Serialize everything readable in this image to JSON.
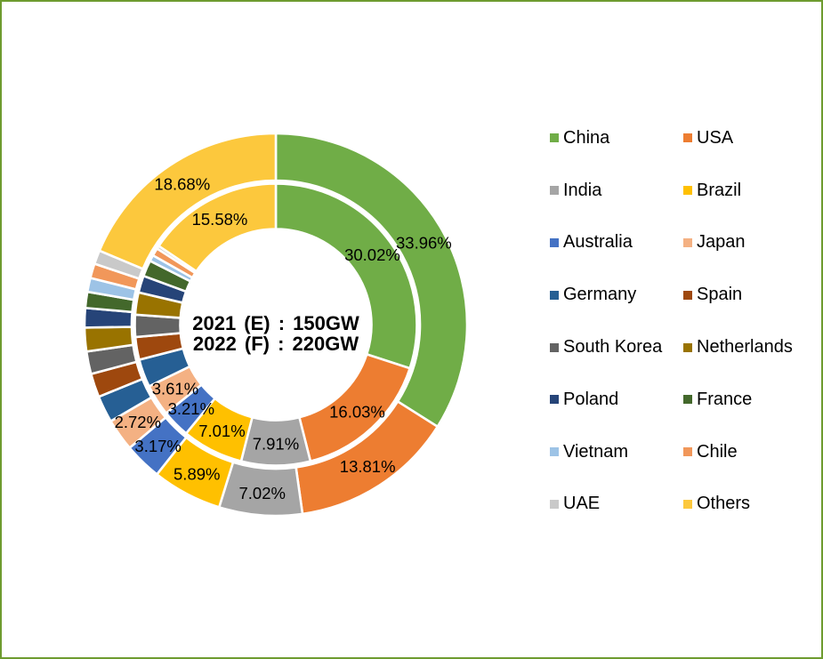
{
  "frame": {
    "border_color": "#6e9b2f",
    "background": "#ffffff"
  },
  "chart_data": {
    "type": "donut",
    "categories": [
      "China",
      "USA",
      "India",
      "Brazil",
      "Australia",
      "Japan",
      "Germany",
      "Spain",
      "South Korea",
      "Netherlands",
      "Poland",
      "France",
      "Vietnam",
      "Chile",
      "UAE",
      "Others"
    ],
    "colors": [
      "#70AD47",
      "#ED7D31",
      "#A5A5A5",
      "#FFC000",
      "#4472C4",
      "#F4B183",
      "#265F94",
      "#9E480E",
      "#636363",
      "#997300",
      "#264478",
      "#43682B",
      "#9DC3E6",
      "#F1975A",
      "#C9C9C9",
      "#FCC83D"
    ],
    "series": [
      {
        "name": "2022 (F)",
        "ring": "outer",
        "total_label": "220GW",
        "values": [
          33.96,
          13.81,
          7.02,
          5.89,
          3.17,
          2.72,
          2.27,
          2.0,
          1.91,
          2.0,
          1.64,
          1.36,
          1.18,
          1.23,
          1.16,
          18.68
        ]
      },
      {
        "name": "2021 (E)",
        "ring": "inner",
        "total_label": "150GW",
        "values": [
          30.02,
          16.03,
          7.91,
          7.01,
          3.21,
          3.61,
          3.2,
          2.6,
          2.53,
          2.55,
          1.95,
          1.85,
          0.7,
          0.9,
          0.35,
          15.58
        ]
      }
    ],
    "labeled_indices": [
      0,
      1,
      2,
      3,
      4,
      5,
      15
    ],
    "center_text": [
      "2021 (E) : 150GW",
      "2022 (F) : 220GW"
    ],
    "legend_position": "right"
  }
}
